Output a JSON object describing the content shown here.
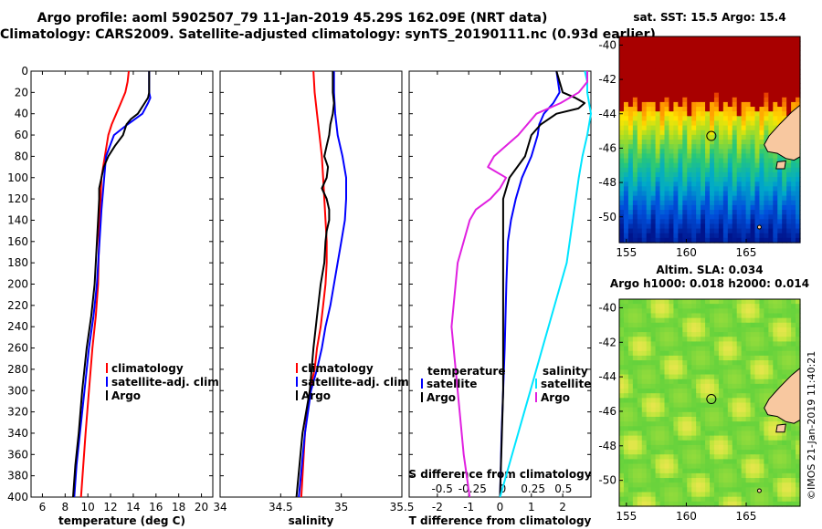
{
  "title_line1": "Argo profile: aoml 5902507_79 11-Jan-2019 45.29S 162.09E (NRT data)",
  "title_line2": "Climatology: CARS2009. Satellite-adjusted climatology: synTS_20190111.nc (0.93d earlier)",
  "stamp": "©IMOS 21-Jan-2019 11:40:21",
  "colors": {
    "climatology": "#ff0000",
    "satellite": "#0000ff",
    "argo": "#000000",
    "sal_satellite": "#00e5ff",
    "sal_argo": "#e020e0",
    "land": "#f8c8a0"
  },
  "chart_data": [
    {
      "type": "line",
      "id": "temperature",
      "xlabel": "temperature (deg C)",
      "ylabel": "",
      "xlim": [
        5,
        21
      ],
      "ylim": [
        400,
        0
      ],
      "xticks": [
        6,
        8,
        10,
        12,
        14,
        16,
        18,
        20
      ],
      "xtick_labels": [
        "6",
        "8",
        "10",
        "12",
        "14",
        "16",
        "18",
        "20"
      ],
      "yticks": [
        0,
        20,
        40,
        60,
        80,
        100,
        120,
        140,
        160,
        180,
        200,
        220,
        240,
        260,
        280,
        300,
        320,
        340,
        360,
        380,
        400
      ],
      "ytick_labels": [
        "0",
        "20",
        "40",
        "60",
        "80",
        "100",
        "120",
        "140",
        "160",
        "180",
        "200",
        "220",
        "240",
        "260",
        "280",
        "300",
        "320",
        "340",
        "360",
        "380",
        "400"
      ],
      "legend": [
        "climatology",
        "satellite-adj. clim.",
        "Argo"
      ],
      "series": [
        {
          "name": "climatology",
          "color_key": "climatology",
          "x": [
            13.6,
            13.5,
            13.3,
            12.9,
            12.5,
            12.1,
            11.8,
            11.5,
            11.2,
            11.0,
            10.9,
            10.7,
            10.4,
            10.1,
            9.8,
            9.6,
            9.4
          ],
          "y": [
            0,
            10,
            20,
            30,
            40,
            50,
            60,
            80,
            100,
            150,
            200,
            230,
            260,
            300,
            340,
            370,
            400
          ]
        },
        {
          "name": "satellite-adj. clim.",
          "color_key": "satellite",
          "x": [
            15.4,
            15.4,
            15.4,
            15.5,
            15.3,
            14.8,
            13.5,
            12.3,
            11.6,
            11.2,
            10.8,
            10.5,
            10.1,
            9.7,
            9.3,
            9.0,
            8.8
          ],
          "y": [
            0,
            10,
            20,
            25,
            30,
            40,
            50,
            60,
            80,
            130,
            200,
            230,
            260,
            300,
            340,
            370,
            400
          ]
        },
        {
          "name": "Argo",
          "color_key": "argo",
          "x": [
            15.4,
            15.4,
            15.4,
            15.3,
            15.0,
            14.4,
            13.8,
            13.4,
            13.1,
            12.4,
            11.8,
            11.4,
            11.2,
            11.0,
            11.0,
            10.9,
            10.6,
            10.3,
            9.9,
            9.5,
            9.2,
            8.9,
            8.7
          ],
          "y": [
            0,
            10,
            20,
            25,
            30,
            40,
            45,
            50,
            60,
            70,
            80,
            90,
            100,
            110,
            120,
            140,
            200,
            230,
            260,
            300,
            340,
            370,
            400
          ]
        }
      ]
    },
    {
      "type": "line",
      "id": "salinity",
      "xlabel": "salinity",
      "xlim": [
        34,
        35.5
      ],
      "ylim": [
        400,
        0
      ],
      "xticks": [
        34,
        34.5,
        35,
        35.5
      ],
      "xtick_labels": [
        "34",
        "34.5",
        "35",
        "35.5"
      ],
      "legend": [
        "climatology",
        "satellite-adj. clim.",
        "Argo"
      ],
      "series": [
        {
          "name": "climatology",
          "color_key": "climatology",
          "x": [
            34.77,
            34.78,
            34.8,
            34.82,
            34.84,
            34.85,
            34.86,
            34.87,
            34.88,
            34.88,
            34.87,
            34.85,
            34.83,
            34.8,
            34.78,
            34.74,
            34.7,
            34.67
          ],
          "y": [
            0,
            20,
            40,
            60,
            80,
            100,
            120,
            140,
            160,
            180,
            200,
            220,
            240,
            260,
            280,
            300,
            340,
            400
          ]
        },
        {
          "name": "satellite-adj. clim.",
          "color_key": "satellite",
          "x": [
            34.94,
            34.94,
            34.95,
            34.97,
            35.01,
            35.04,
            35.04,
            35.03,
            35.0,
            34.97,
            34.94,
            34.91,
            34.87,
            34.84,
            34.8,
            34.75,
            34.7,
            34.65
          ],
          "y": [
            0,
            20,
            40,
            60,
            80,
            100,
            120,
            140,
            160,
            180,
            200,
            220,
            240,
            260,
            280,
            300,
            340,
            400
          ]
        },
        {
          "name": "Argo",
          "color_key": "argo",
          "x": [
            34.93,
            34.93,
            34.94,
            34.93,
            34.91,
            34.9,
            34.88,
            34.86,
            34.89,
            34.88,
            34.84,
            34.88,
            34.9,
            34.9,
            34.88,
            34.87,
            34.86,
            34.83,
            34.8,
            34.77,
            34.74,
            34.68,
            34.63
          ],
          "y": [
            0,
            20,
            30,
            40,
            50,
            60,
            70,
            80,
            90,
            100,
            110,
            120,
            130,
            140,
            150,
            160,
            180,
            200,
            230,
            260,
            300,
            340,
            400
          ]
        }
      ]
    },
    {
      "type": "line",
      "id": "difference",
      "xlabel": "T difference from climatology",
      "xlabel2": "S difference from climatology",
      "xlim": [
        -2.9,
        2.9
      ],
      "ylim": [
        400,
        0
      ],
      "xticks": [
        -2,
        -1,
        0,
        1,
        2
      ],
      "xtick_labels": [
        "-2",
        "-1",
        "0",
        "1",
        "2"
      ],
      "xticks2": [
        -0.5,
        -0.25,
        0,
        0.25,
        0.5
      ],
      "xtick2_labels": [
        "-0.5",
        "-0.25",
        "0",
        "0.25",
        "0.5"
      ],
      "legend_temperature_title": "temperature",
      "legend_salinity_title": "salinity",
      "legend_temperature": [
        "satellite",
        "Argo"
      ],
      "legend_salinity": [
        "satellite",
        "Argo"
      ],
      "series": [
        {
          "name": "temperature satellite",
          "color_key": "satellite",
          "x": [
            1.8,
            1.85,
            1.9,
            1.7,
            1.4,
            1.25,
            1.2,
            1.0,
            0.7,
            0.5,
            0.35,
            0.25,
            0.2,
            0.15,
            0.1,
            0.05,
            0.0
          ],
          "y": [
            0,
            10,
            20,
            30,
            40,
            50,
            60,
            80,
            100,
            120,
            140,
            160,
            200,
            260,
            300,
            340,
            400
          ]
        },
        {
          "name": "temperature Argo",
          "color_key": "argo",
          "x": [
            1.8,
            1.9,
            2.0,
            2.4,
            2.7,
            2.5,
            1.8,
            1.3,
            1.0,
            0.8,
            0.3,
            0.1,
            0.1,
            0.1,
            0.1,
            0.05,
            0.0
          ],
          "y": [
            0,
            10,
            20,
            25,
            30,
            35,
            40,
            50,
            60,
            80,
            100,
            120,
            140,
            200,
            300,
            350,
            400
          ]
        },
        {
          "name": "salinity satellite",
          "color_key": "sal_satellite",
          "x": [
            0.7,
            0.72,
            0.72,
            0.75,
            0.72,
            0.68,
            0.65,
            0.6,
            0.55,
            0.45,
            0.35,
            0.25,
            0.15,
            0.05,
            0.0
          ],
          "y": [
            0,
            10,
            20,
            40,
            60,
            80,
            100,
            140,
            180,
            220,
            260,
            300,
            340,
            380,
            400
          ]
        },
        {
          "name": "salinity Argo",
          "color_key": "sal_argo",
          "x": [
            0.72,
            0.72,
            0.65,
            0.5,
            0.3,
            0.15,
            0.05,
            -0.05,
            -0.1,
            0.05,
            0.0,
            -0.08,
            -0.2,
            -0.25,
            -0.35,
            -0.4,
            -0.35,
            -0.3,
            -0.25
          ],
          "y": [
            0,
            10,
            20,
            30,
            40,
            60,
            70,
            80,
            90,
            100,
            110,
            120,
            130,
            140,
            180,
            240,
            300,
            360,
            400
          ]
        }
      ]
    }
  ],
  "maps": [
    {
      "id": "sst",
      "title": "sat. SST: 15.5 Argo: 15.4",
      "yticks": [
        -40,
        -42,
        -44,
        -46,
        -48,
        -50
      ],
      "ytick_labels": [
        "-40",
        "-42",
        "-44",
        "-46",
        "-48",
        "-50"
      ],
      "xticks": [
        155,
        160,
        165
      ],
      "xtick_labels": [
        "155",
        "160",
        "165"
      ],
      "profile_lon": 162.09,
      "profile_lat": -45.29
    },
    {
      "id": "sla",
      "title": "Altim. SLA: 0.034",
      "subtitle": "Argo h1000: 0.018 h2000: 0.014",
      "yticks": [
        -40,
        -42,
        -44,
        -46,
        -48,
        -50
      ],
      "ytick_labels": [
        "-40",
        "-42",
        "-44",
        "-46",
        "-48",
        "-50"
      ],
      "xticks": [
        155,
        160,
        165
      ],
      "xtick_labels": [
        "155",
        "160",
        "165"
      ],
      "profile_lon": 162.09,
      "profile_lat": -45.29
    }
  ]
}
